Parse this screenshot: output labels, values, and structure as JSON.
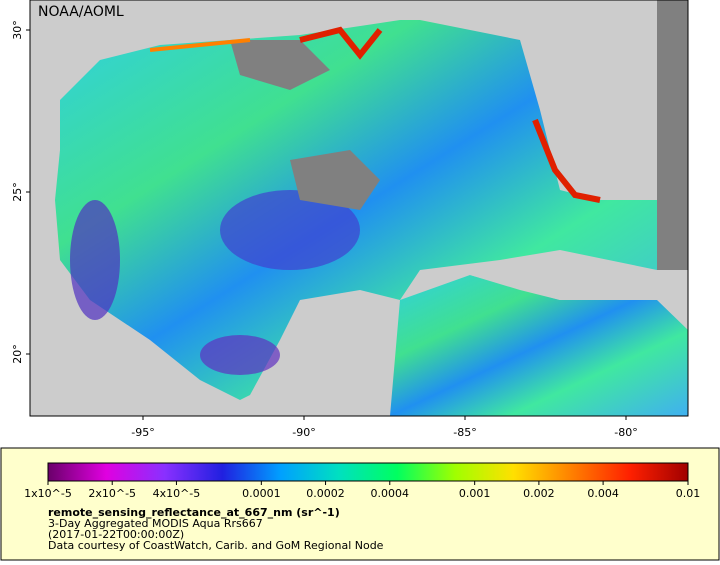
{
  "map": {
    "credit": "NOAA/AOML",
    "lat_ticks": [
      {
        "value": 30,
        "label": "30°"
      },
      {
        "value": 25,
        "label": "25°"
      },
      {
        "value": 20,
        "label": "20°"
      }
    ],
    "lon_ticks": [
      {
        "value": -95,
        "label": "-95°"
      },
      {
        "value": -90,
        "label": "-90°"
      },
      {
        "value": -85,
        "label": "-85°"
      },
      {
        "value": -80,
        "label": "-80°"
      }
    ]
  },
  "colorbar": {
    "range": [
      1e-05,
      0.01
    ],
    "log": true,
    "colors": [
      "#6a006a",
      "#e000e0",
      "#8a30ff",
      "#2020e0",
      "#00a0ff",
      "#00e0c0",
      "#00ff60",
      "#a0ff00",
      "#ffe000",
      "#ff8000",
      "#ff2000",
      "#a00000"
    ],
    "ticks": [
      {
        "value": 1e-05,
        "label": "1x10^-5"
      },
      {
        "value": 2e-05,
        "label": "2x10^-5"
      },
      {
        "value": 4e-05,
        "label": "4x10^-5"
      },
      0.0001,
      0.0002,
      0.0004,
      0.001,
      0.002,
      0.004,
      0.01
    ]
  },
  "caption": {
    "variable": "remote_sensing_reflectance_at_667_nm (sr^-1)",
    "lines": [
      "3-Day Aggregated MODIS Aqua Rrs667",
      "(2017-01-22T00:00:00Z)",
      "Data courtesy of CoastWatch, Carib. and GoM Regional Node"
    ]
  }
}
